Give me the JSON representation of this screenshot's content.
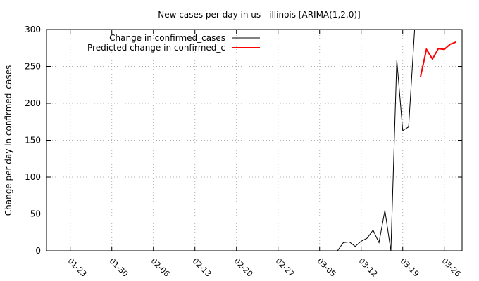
{
  "chart_data": {
    "type": "line",
    "title": "New cases per day in us - illinois [ARIMA(1,2,0)]",
    "xlabel": "",
    "ylabel": "Change per day in confirmed_cases",
    "x_type": "date",
    "xlim": [
      "2020-01-19",
      "2020-03-29"
    ],
    "ylim": [
      0,
      300
    ],
    "y_ticks": [
      0,
      50,
      100,
      150,
      200,
      250,
      300
    ],
    "x_ticks": [
      "2020-01-23",
      "2020-01-30",
      "2020-02-06",
      "2020-02-13",
      "2020-02-20",
      "2020-02-27",
      "2020-03-05",
      "2020-03-12",
      "2020-03-19",
      "2020-03-26"
    ],
    "x_tick_labels": [
      "01-23",
      "01-30",
      "02-06",
      "02-13",
      "02-20",
      "02-27",
      "03-05",
      "03-12",
      "03-19",
      "03-26"
    ],
    "grid": true,
    "legend_position": "top-left",
    "series": [
      {
        "name": "Change in confirmed_cases",
        "color": "#000000",
        "points": [
          [
            "2020-03-08",
            0
          ],
          [
            "2020-03-09",
            11
          ],
          [
            "2020-03-10",
            12
          ],
          [
            "2020-03-11",
            6
          ],
          [
            "2020-03-12",
            13
          ],
          [
            "2020-03-13",
            17
          ],
          [
            "2020-03-14",
            28
          ],
          [
            "2020-03-15",
            11
          ],
          [
            "2020-03-16",
            55
          ],
          [
            "2020-03-17",
            0
          ],
          [
            "2020-03-18",
            259
          ],
          [
            "2020-03-19",
            163
          ],
          [
            "2020-03-20",
            168
          ],
          [
            "2020-03-21",
            300
          ]
        ]
      },
      {
        "name": "Predicted change in confirmed_c",
        "color": "#ff0000",
        "points": [
          [
            "2020-03-22",
            236
          ],
          [
            "2020-03-23",
            273
          ],
          [
            "2020-03-24",
            260
          ],
          [
            "2020-03-25",
            274
          ],
          [
            "2020-03-26",
            273
          ],
          [
            "2020-03-27",
            280
          ],
          [
            "2020-03-28",
            283
          ]
        ]
      }
    ]
  }
}
